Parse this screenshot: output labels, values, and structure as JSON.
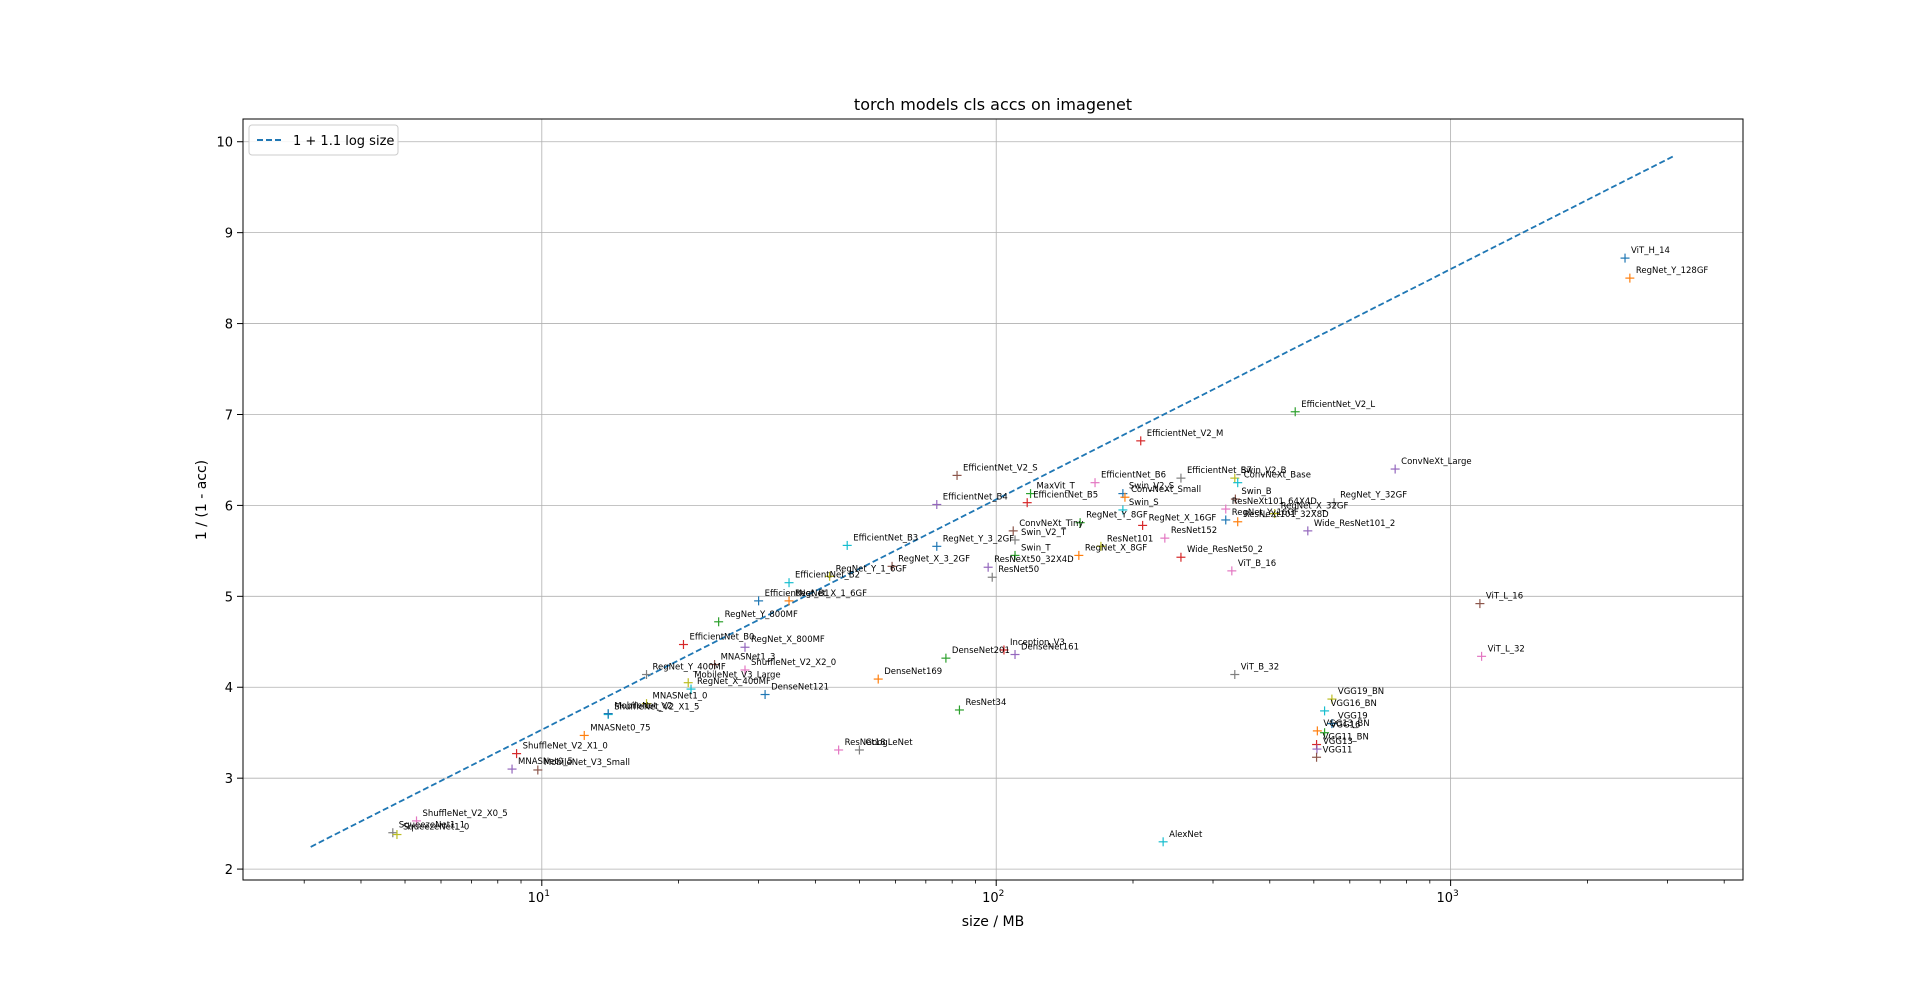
{
  "chart_data": {
    "type": "scatter",
    "title": "torch models cls accs on imagenet",
    "xlabel": "size / MB",
    "ylabel": "1 / (1 - acc)",
    "xscale": "log",
    "xlim": [
      2.2,
      4400
    ],
    "ylim": [
      1.88,
      10.25
    ],
    "x_ticks": [
      10,
      100,
      1000
    ],
    "x_tick_labels": [
      {
        "base": "10",
        "exp": "1"
      },
      {
        "base": "10",
        "exp": "2"
      },
      {
        "base": "10",
        "exp": "3"
      }
    ],
    "y_ticks": [
      2,
      3,
      4,
      5,
      6,
      7,
      8,
      9,
      10
    ],
    "grid": true,
    "legend_position": "top-left",
    "legend": [
      {
        "label": "1 + 1.1 log size",
        "style": "dashed",
        "color": "#1f77b4"
      }
    ],
    "fit_line": {
      "x_range": [
        3.1,
        3100
      ]
    },
    "marker": "+",
    "colors": [
      "#1f77b4",
      "#ff7f0e",
      "#2ca02c",
      "#d62728",
      "#9467bd",
      "#8c564b",
      "#e377c2",
      "#7f7f7f",
      "#bcbd22",
      "#17becf"
    ],
    "points": [
      {
        "name": "ViT_H_14",
        "x": 2420,
        "y": 8.72
      },
      {
        "name": "RegNet_Y_128GF",
        "x": 2480,
        "y": 8.5
      },
      {
        "name": "EfficientNet_V2_L",
        "x": 455,
        "y": 7.03
      },
      {
        "name": "EfficientNet_V2_M",
        "x": 208,
        "y": 6.71
      },
      {
        "name": "ConvNeXt_Large",
        "x": 755,
        "y": 6.4
      },
      {
        "name": "EfficientNet_V2_S",
        "x": 82,
        "y": 6.33
      },
      {
        "name": "EfficientNet_B6",
        "x": 165,
        "y": 6.25
      },
      {
        "name": "EfficientNet_B7",
        "x": 255,
        "y": 6.3
      },
      {
        "name": "Swin_V2_B",
        "x": 335,
        "y": 6.3
      },
      {
        "name": "ConvNeXt_Base",
        "x": 340,
        "y": 6.25
      },
      {
        "name": "Swin_V2_S",
        "x": 190,
        "y": 6.13
      },
      {
        "name": "ConvNeXt_Small",
        "x": 192,
        "y": 6.09
      },
      {
        "name": "MaxVit_T",
        "x": 119,
        "y": 6.13
      },
      {
        "name": "EfficientNet_B5",
        "x": 117,
        "y": 6.03
      },
      {
        "name": "EfficientNet_B4",
        "x": 74,
        "y": 6.01
      },
      {
        "name": "Swin_B",
        "x": 336,
        "y": 6.07
      },
      {
        "name": "ResNeXt101_64X4D",
        "x": 320,
        "y": 5.96
      },
      {
        "name": "RegNet_Y_32GF",
        "x": 554,
        "y": 6.03
      },
      {
        "name": "RegNet_X_32GF",
        "x": 410,
        "y": 5.91
      },
      {
        "name": "Swin_S",
        "x": 190,
        "y": 5.95
      },
      {
        "name": "RegNet_Y_16GF",
        "x": 320,
        "y": 5.84
      },
      {
        "name": "ResNeXt101_32X8D",
        "x": 340,
        "y": 5.82
      },
      {
        "name": "RegNet_Y_8GF",
        "x": 153,
        "y": 5.81
      },
      {
        "name": "RegNet_X_16GF",
        "x": 210,
        "y": 5.78
      },
      {
        "name": "Wide_ResNet101_2",
        "x": 485,
        "y": 5.72
      },
      {
        "name": "ConvNeXt_Tiny",
        "x": 109,
        "y": 5.72
      },
      {
        "name": "ResNet152",
        "x": 235,
        "y": 5.64
      },
      {
        "name": "Swin_V2_T",
        "x": 110,
        "y": 5.62
      },
      {
        "name": "ResNet101",
        "x": 170,
        "y": 5.55
      },
      {
        "name": "EfficientNet_B3",
        "x": 47,
        "y": 5.56
      },
      {
        "name": "RegNet_Y_3_2GF",
        "x": 74,
        "y": 5.55
      },
      {
        "name": "RegNet_X_8GF",
        "x": 152,
        "y": 5.45
      },
      {
        "name": "Swin_T",
        "x": 110,
        "y": 5.45
      },
      {
        "name": "Wide_ResNet50_2",
        "x": 255,
        "y": 5.43
      },
      {
        "name": "ResNeXt50_32X4D",
        "x": 96,
        "y": 5.32
      },
      {
        "name": "RegNet_X_3_2GF",
        "x": 59,
        "y": 5.33
      },
      {
        "name": "ViT_B_16",
        "x": 330,
        "y": 5.28
      },
      {
        "name": "ResNet50",
        "x": 98,
        "y": 5.21
      },
      {
        "name": "RegNet_Y_1_6GF",
        "x": 43,
        "y": 5.22
      },
      {
        "name": "EfficientNet_B2",
        "x": 35,
        "y": 5.15
      },
      {
        "name": "EfficientNet_B1",
        "x": 30,
        "y": 4.95
      },
      {
        "name": "RegNet_X_1_6GF",
        "x": 35,
        "y": 4.95
      },
      {
        "name": "RegNet_Y_800MF",
        "x": 24.5,
        "y": 4.72
      },
      {
        "name": "EfficientNet_B0",
        "x": 20.5,
        "y": 4.47
      },
      {
        "name": "RegNet_X_800MF",
        "x": 28,
        "y": 4.44
      },
      {
        "name": "MNASNet1_3",
        "x": 24,
        "y": 4.25
      },
      {
        "name": "ShuffleNet_V2_X2_0",
        "x": 28,
        "y": 4.19
      },
      {
        "name": "RegNet_Y_400MF",
        "x": 17,
        "y": 4.14
      },
      {
        "name": "MobileNet_V3_Large",
        "x": 21,
        "y": 4.05
      },
      {
        "name": "RegNet_X_400MF",
        "x": 21.3,
        "y": 3.98
      },
      {
        "name": "DenseNet121",
        "x": 31,
        "y": 3.92
      },
      {
        "name": "DenseNet169",
        "x": 55,
        "y": 4.09
      },
      {
        "name": "DenseNet201",
        "x": 77.5,
        "y": 4.32
      },
      {
        "name": "Inception_V3",
        "x": 104,
        "y": 4.41
      },
      {
        "name": "DenseNet161",
        "x": 110,
        "y": 4.36
      },
      {
        "name": "ViT_L_16",
        "x": 1160,
        "y": 4.92
      },
      {
        "name": "ViT_L_32",
        "x": 1170,
        "y": 4.34
      },
      {
        "name": "ViT_B_32",
        "x": 335,
        "y": 4.14
      },
      {
        "name": "MNASNet1_0",
        "x": 17,
        "y": 3.82
      },
      {
        "name": "ShuffleNet_V2_X1_5",
        "x": 14,
        "y": 3.7
      },
      {
        "name": "MobileNet_V2",
        "x": 14,
        "y": 3.71
      },
      {
        "name": "MNASNet0_75",
        "x": 12.4,
        "y": 3.47
      },
      {
        "name": "ResNet34",
        "x": 83,
        "y": 3.75
      },
      {
        "name": "ShuffleNet_V2_X1_0",
        "x": 8.8,
        "y": 3.27
      },
      {
        "name": "MNASNet0_5",
        "x": 8.6,
        "y": 3.1
      },
      {
        "name": "MobileNet_V3_Small",
        "x": 9.8,
        "y": 3.09
      },
      {
        "name": "ResNet18",
        "x": 45,
        "y": 3.31
      },
      {
        "name": "GoogLeNet",
        "x": 50,
        "y": 3.31
      },
      {
        "name": "VGG19_BN",
        "x": 548,
        "y": 3.87
      },
      {
        "name": "VGG16_BN",
        "x": 528,
        "y": 3.74
      },
      {
        "name": "VGG19",
        "x": 548,
        "y": 3.6
      },
      {
        "name": "VGG13_BN",
        "x": 509,
        "y": 3.52
      },
      {
        "name": "VGG16",
        "x": 528,
        "y": 3.5
      },
      {
        "name": "VGG11_BN",
        "x": 507,
        "y": 3.37
      },
      {
        "name": "VGG13",
        "x": 508,
        "y": 3.32
      },
      {
        "name": "VGG11",
        "x": 507,
        "y": 3.23
      },
      {
        "name": "ShuffleNet_V2_X0_5",
        "x": 5.3,
        "y": 2.53
      },
      {
        "name": "SqueezeNet1_1",
        "x": 4.7,
        "y": 2.4
      },
      {
        "name": "SqueezeNet1_0",
        "x": 4.8,
        "y": 2.38
      },
      {
        "name": "AlexNet",
        "x": 233,
        "y": 2.3
      }
    ]
  }
}
